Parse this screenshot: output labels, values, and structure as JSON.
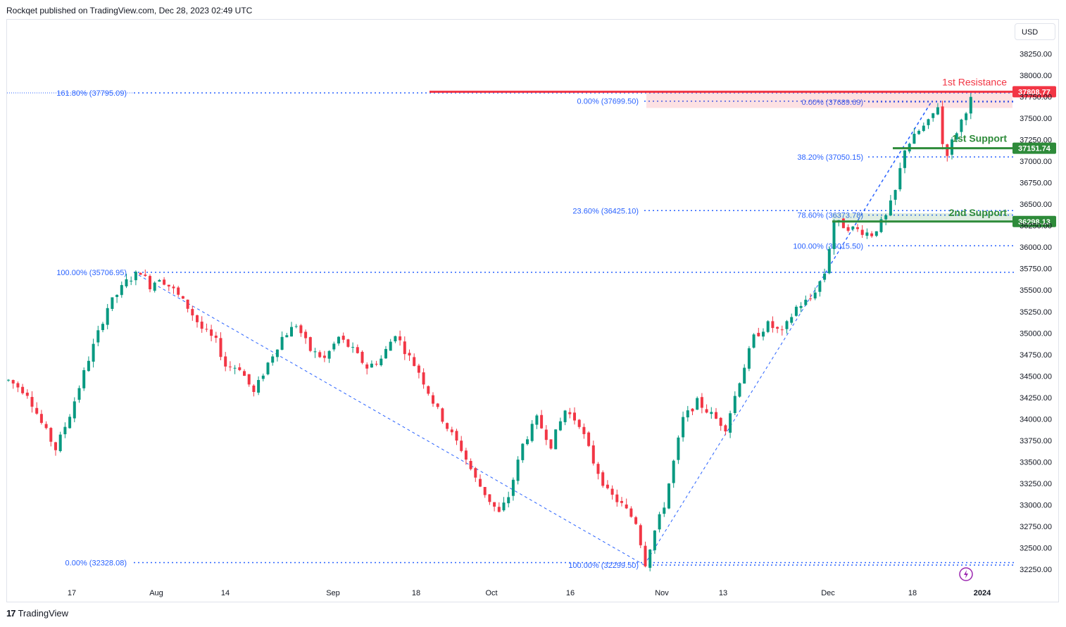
{
  "header": {
    "publisher_line": "Rockqet published on TradingView.com, Dec 28, 2023 02:49 UTC"
  },
  "footer": {
    "brand": "TradingView"
  },
  "currency_button": "USD",
  "colors": {
    "up": "#089981",
    "down": "#f23645",
    "fib": "#2962ff",
    "resistance": "#f23645",
    "support": "#2e8b3a"
  },
  "chart_data": {
    "type": "candlestick",
    "y_ticks": [
      "38250.00",
      "38000.00",
      "37750.00",
      "37500.00",
      "37250.00",
      "37000.00",
      "36750.00",
      "36500.00",
      "36250.00",
      "36000.00",
      "35750.00",
      "35500.00",
      "35250.00",
      "35000.00",
      "34750.00",
      "34500.00",
      "34250.00",
      "34000.00",
      "33750.00",
      "33500.00",
      "33250.00",
      "33000.00",
      "32750.00",
      "32500.00",
      "32250.00"
    ],
    "ylim": [
      32110,
      38530
    ],
    "x_ticks": [
      "17",
      "Aug",
      "14",
      "Sep",
      "18",
      "Oct",
      "16",
      "Nov",
      "13",
      "Dec",
      "18",
      "2024"
    ],
    "series_path": [
      [
        0,
        34450
      ],
      [
        4,
        34300
      ],
      [
        7,
        33950
      ],
      [
        10,
        33650
      ],
      [
        13,
        34050
      ],
      [
        17,
        34700
      ],
      [
        21,
        35300
      ],
      [
        25,
        35600
      ],
      [
        28,
        35720
      ],
      [
        30,
        35550
      ],
      [
        32,
        35650
      ],
      [
        35,
        35500
      ],
      [
        38,
        35300
      ],
      [
        41,
        35050
      ],
      [
        44,
        34900
      ],
      [
        46,
        34620
      ],
      [
        49,
        34600
      ],
      [
        52,
        34300
      ],
      [
        55,
        34650
      ],
      [
        58,
        34950
      ],
      [
        61,
        35100
      ],
      [
        64,
        34800
      ],
      [
        67,
        34700
      ],
      [
        70,
        34950
      ],
      [
        73,
        34800
      ],
      [
        76,
        34600
      ],
      [
        79,
        34700
      ],
      [
        82,
        35000
      ],
      [
        84,
        34800
      ],
      [
        87,
        34550
      ],
      [
        90,
        34200
      ],
      [
        93,
        33900
      ],
      [
        96,
        33650
      ],
      [
        99,
        33300
      ],
      [
        102,
        33050
      ],
      [
        104,
        32900
      ],
      [
        106,
        33100
      ],
      [
        109,
        33700
      ],
      [
        112,
        34000
      ],
      [
        115,
        33700
      ],
      [
        118,
        34100
      ],
      [
        121,
        33950
      ],
      [
        124,
        33500
      ],
      [
        127,
        33150
      ],
      [
        130,
        33000
      ],
      [
        133,
        32800
      ],
      [
        135,
        32320
      ],
      [
        137,
        32700
      ],
      [
        139,
        33000
      ],
      [
        141,
        33500
      ],
      [
        143,
        34000
      ],
      [
        146,
        34200
      ],
      [
        149,
        34050
      ],
      [
        152,
        33900
      ],
      [
        155,
        34450
      ],
      [
        158,
        34950
      ],
      [
        161,
        35100
      ],
      [
        164,
        35000
      ],
      [
        167,
        35300
      ],
      [
        170,
        35400
      ],
      [
        173,
        35700
      ],
      [
        175,
        36300
      ],
      [
        177,
        36250
      ],
      [
        180,
        36200
      ],
      [
        183,
        36150
      ],
      [
        186,
        36350
      ],
      [
        188,
        36650
      ],
      [
        190,
        37150
      ],
      [
        193,
        37350
      ],
      [
        195,
        37450
      ],
      [
        197,
        37650
      ],
      [
        198,
        37200
      ],
      [
        199,
        37100
      ],
      [
        201,
        37350
      ],
      [
        203,
        37600
      ],
      [
        204,
        37720
      ]
    ],
    "fib_levels": [
      {
        "label": "161.80% (37795.09)",
        "value": 37795.09
      },
      {
        "label": "100.00% (35706.95)",
        "value": 35706.95
      },
      {
        "label": "0.00% (32328.08)",
        "value": 32328.08
      },
      {
        "label": "0.00% (37699.50)",
        "value": 37699.5
      },
      {
        "label": "23.60% (36425.10)",
        "value": 36425.1
      },
      {
        "label": "100.00% (32299.50)",
        "value": 32299.5
      },
      {
        "label": "0.00% (37689.69)",
        "value": 37689.69
      },
      {
        "label": "38.20% (37050.15)",
        "value": 37050.15
      },
      {
        "label": "78.60% (36373.78)",
        "value": 36373.78
      },
      {
        "label": "100.00% (36015.50)",
        "value": 36015.5
      }
    ],
    "levels": [
      {
        "name": "1st Resistance",
        "value": 37808.77,
        "label": "37808.77",
        "kind": "resistance"
      },
      {
        "name": "1st Support",
        "value": 37151.74,
        "label": "37151.74",
        "kind": "support"
      },
      {
        "name": "2nd Support",
        "value": 36298.13,
        "label": "36298.13",
        "kind": "support"
      }
    ]
  }
}
